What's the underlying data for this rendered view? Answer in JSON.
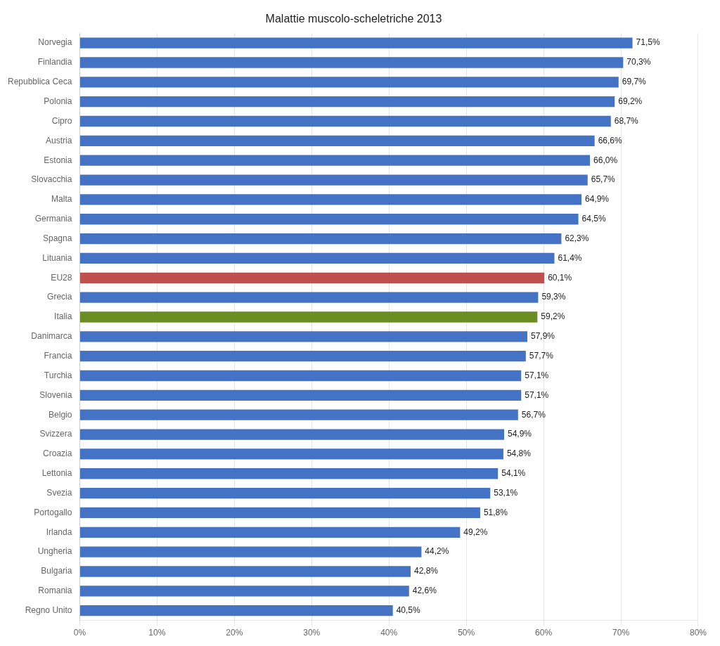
{
  "chart_data": {
    "type": "bar",
    "orientation": "horizontal",
    "title": "Malattie muscolo-scheletriche 2013",
    "categories": [
      "Regno Unito",
      "Romania",
      "Bulgaria",
      "Ungheria",
      "Irlanda",
      "Portogallo",
      "Svezia",
      "Lettonia",
      "Croazia",
      "Svizzera",
      "Belgio",
      "Slovenia",
      "Turchia",
      "Francia",
      "Danimarca",
      "Italia",
      "Grecia",
      "EU28",
      "Lituania",
      "Spagna",
      "Germania",
      "Malta",
      "Slovacchia",
      "Estonia",
      "Austria",
      "Cipro",
      "Polonia",
      "Repubblica Ceca",
      "Finlandia",
      "Norvegia"
    ],
    "values": [
      40.5,
      42.6,
      42.8,
      44.2,
      49.2,
      51.8,
      53.1,
      54.1,
      54.8,
      54.9,
      56.7,
      57.1,
      57.1,
      57.7,
      57.9,
      59.2,
      59.3,
      60.1,
      61.4,
      62.3,
      64.5,
      64.9,
      65.7,
      66.0,
      66.6,
      68.7,
      69.2,
      69.7,
      70.3,
      71.5
    ],
    "data_labels": true,
    "value_labels": [
      "40,5%",
      "42,6%",
      "42,8%",
      "44,2%",
      "49,2%",
      "51,8%",
      "53,1%",
      "54,1%",
      "54,8%",
      "54,9%",
      "56,7%",
      "57,1%",
      "57,1%",
      "57,7%",
      "57,9%",
      "59,2%",
      "59,3%",
      "60,1%",
      "61,4%",
      "62,3%",
      "64,5%",
      "64,9%",
      "65,7%",
      "66,0%",
      "66,6%",
      "68,7%",
      "69,2%",
      "69,7%",
      "70,3%",
      "71,5%"
    ],
    "colors": [
      "#4472C4",
      "#4472C4",
      "#4472C4",
      "#4472C4",
      "#4472C4",
      "#4472C4",
      "#4472C4",
      "#4472C4",
      "#4472C4",
      "#4472C4",
      "#4472C4",
      "#4472C4",
      "#4472C4",
      "#4472C4",
      "#4472C4",
      "#6B8E23",
      "#4472C4",
      "#C0504D",
      "#4472C4",
      "#4472C4",
      "#4472C4",
      "#4472C4",
      "#4472C4",
      "#4472C4",
      "#4472C4",
      "#4472C4",
      "#4472C4",
      "#4472C4",
      "#4472C4",
      "#4472C4"
    ],
    "xlim": [
      0,
      80
    ],
    "xticks": [
      {
        "value": 0,
        "label": "0%"
      },
      {
        "value": 10,
        "label": "10%"
      },
      {
        "value": 20,
        "label": "20%"
      },
      {
        "value": 30,
        "label": "30%"
      },
      {
        "value": 40,
        "label": "40%"
      },
      {
        "value": 50,
        "label": "50%"
      },
      {
        "value": 60,
        "label": "60%"
      },
      {
        "value": 70,
        "label": "70%"
      },
      {
        "value": 80,
        "label": "80%"
      }
    ],
    "grid": true
  }
}
